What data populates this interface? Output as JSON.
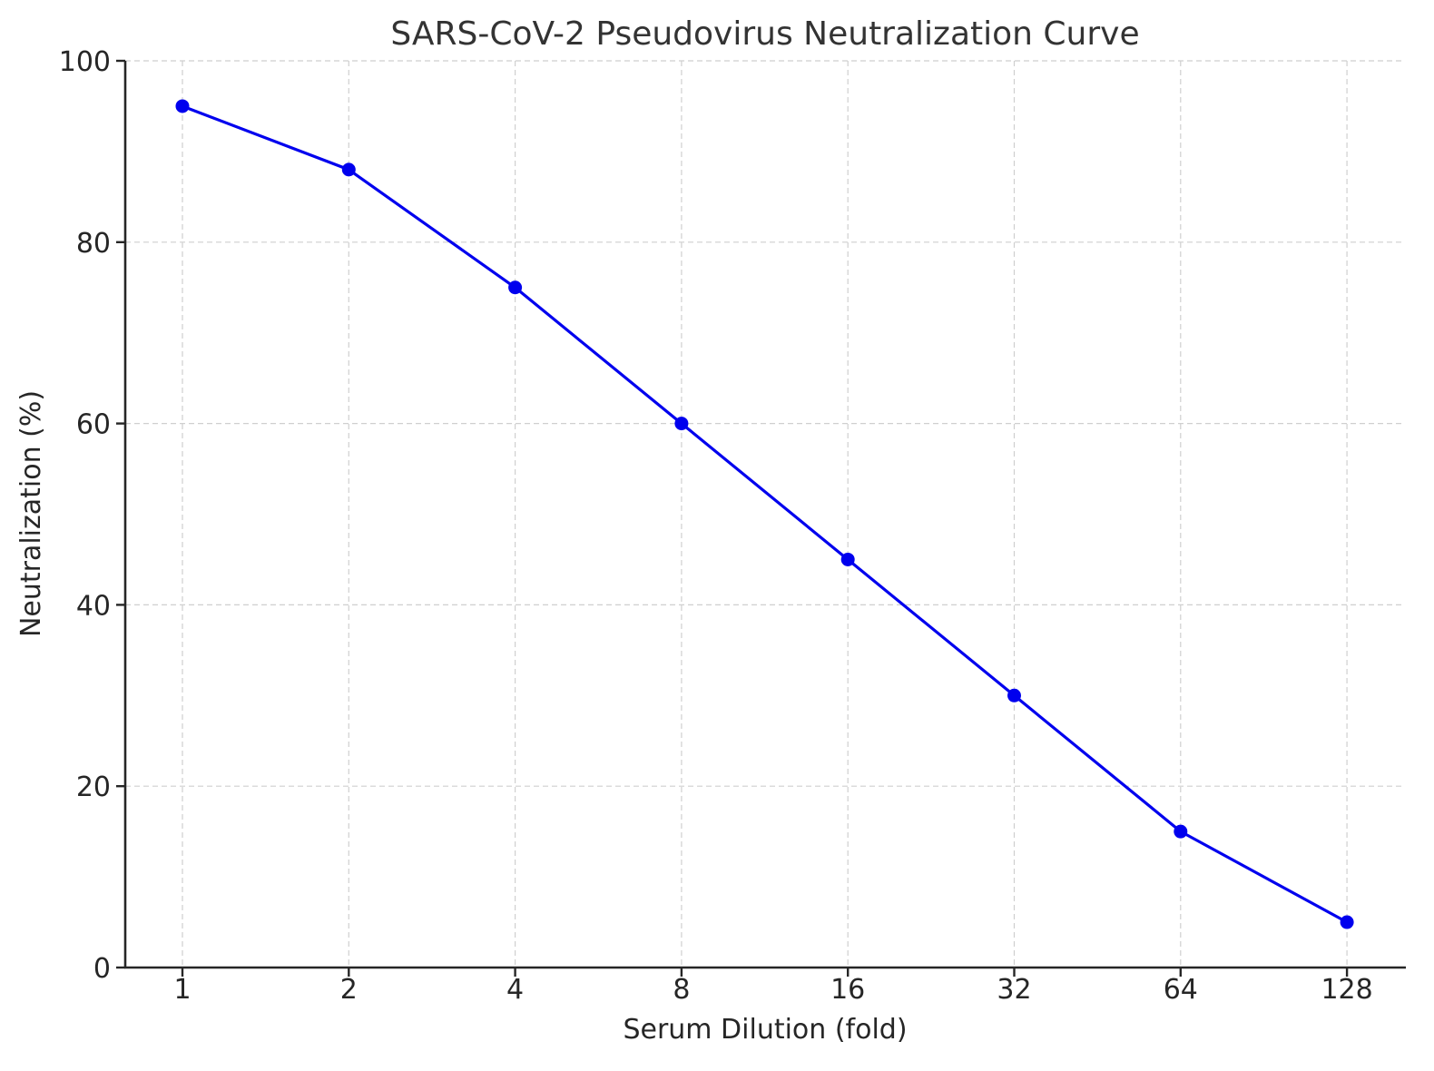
{
  "chart_data": {
    "type": "line",
    "title": "SARS-CoV-2 Pseudovirus Neutralization Curve",
    "xlabel": "Serum Dilution (fold)",
    "ylabel": "Neutralization (%)",
    "x_scale": "log2",
    "categories": [
      "1",
      "2",
      "4",
      "8",
      "16",
      "32",
      "64",
      "128"
    ],
    "x": [
      1,
      2,
      4,
      8,
      16,
      32,
      64,
      128
    ],
    "series": [
      {
        "name": "Neutralization",
        "values": [
          95,
          88,
          75,
          60,
          45,
          30,
          15,
          5
        ],
        "color": "#0000ee",
        "marker": "circle"
      }
    ],
    "ylim": [
      0,
      100
    ],
    "yticks": [
      0,
      20,
      40,
      60,
      80,
      100
    ],
    "xticks": [
      "1",
      "2",
      "4",
      "8",
      "16",
      "32",
      "64",
      "128"
    ],
    "grid": true,
    "legend": null
  },
  "colors": {
    "line": "#0000ee",
    "axis": "#262626",
    "grid": "#cfcfcf",
    "title": "#333333"
  }
}
